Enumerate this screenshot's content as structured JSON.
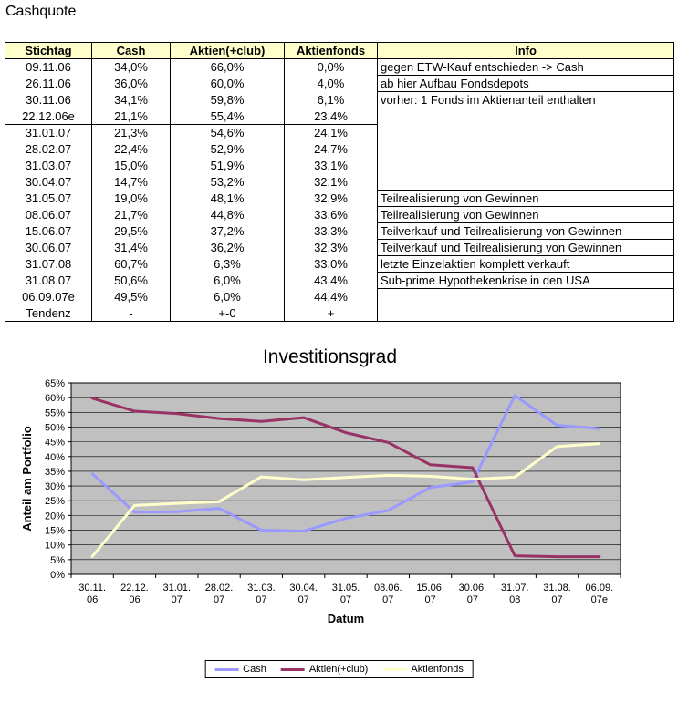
{
  "page": {
    "title": "Cashquote"
  },
  "colors": {
    "header_bg": "#FFFFCC",
    "plot_bg": "#C0C0C0",
    "cash": "#9999FF",
    "aktien": "#993366",
    "aktienfonds": "#FFFFCC"
  },
  "table": {
    "headers": [
      "Stichtag",
      "Cash",
      "Aktien(+club)",
      "Aktienfonds",
      "Info"
    ],
    "rows": [
      {
        "stichtag": "09.11.06",
        "cash": "34,0%",
        "aktien": "66,0%",
        "fonds": "0,0%",
        "info": "gegen ETW-Kauf entschieden -> Cash",
        "separator_after": false
      },
      {
        "stichtag": "26.11.06",
        "cash": "36,0%",
        "aktien": "60,0%",
        "fonds": "4,0%",
        "info": "ab hier Aufbau Fondsdepots",
        "separator_after": false
      },
      {
        "stichtag": "30.11.06",
        "cash": "34,1%",
        "aktien": "59,8%",
        "fonds": "6,1%",
        "info": "vorher: 1 Fonds im Aktienanteil enthalten",
        "separator_after": false
      },
      {
        "stichtag": "22.12.06e",
        "cash": "21,1%",
        "aktien": "55,4%",
        "fonds": "23,4%",
        "info": "",
        "separator_after": true
      },
      {
        "stichtag": "31.01.07",
        "cash": "21,3%",
        "aktien": "54,6%",
        "fonds": "24,1%",
        "info": "",
        "separator_after": false
      },
      {
        "stichtag": "28.02.07",
        "cash": "22,4%",
        "aktien": "52,9%",
        "fonds": "24,7%",
        "info": "",
        "separator_after": false
      },
      {
        "stichtag": "31.03.07",
        "cash": "15,0%",
        "aktien": "51,9%",
        "fonds": "33,1%",
        "info": "",
        "separator_after": false
      },
      {
        "stichtag": "30.04.07",
        "cash": "14,7%",
        "aktien": "53,2%",
        "fonds": "32,1%",
        "info": "",
        "separator_after": false
      },
      {
        "stichtag": "31.05.07",
        "cash": "19,0%",
        "aktien": "48,1%",
        "fonds": "32,9%",
        "info": "Teilrealisierung von Gewinnen",
        "separator_after": false
      },
      {
        "stichtag": "08.06.07",
        "cash": "21,7%",
        "aktien": "44,8%",
        "fonds": "33,6%",
        "info": "Teilrealisierung von Gewinnen",
        "separator_after": false
      },
      {
        "stichtag": "15.06.07",
        "cash": "29,5%",
        "aktien": "37,2%",
        "fonds": "33,3%",
        "info": "Teilverkauf und Teilrealisierung von Gewinnen",
        "separator_after": false
      },
      {
        "stichtag": "30.06.07",
        "cash": "31,4%",
        "aktien": "36,2%",
        "fonds": "32,3%",
        "info": "Teilverkauf und Teilrealisierung von Gewinnen",
        "separator_after": false
      },
      {
        "stichtag": "31.07.08",
        "cash": "60,7%",
        "aktien": "6,3%",
        "fonds": "33,0%",
        "info": "letzte Einzelaktien komplett verkauft",
        "separator_after": false
      },
      {
        "stichtag": "31.08.07",
        "cash": "50,6%",
        "aktien": "6,0%",
        "fonds": "43,4%",
        "info": "Sub-prime Hypothekenkrise in den USA",
        "separator_after": false
      },
      {
        "stichtag": "06.09.07e",
        "cash": "49,5%",
        "aktien": "6,0%",
        "fonds": "44,4%",
        "info": "",
        "separator_after": false
      },
      {
        "stichtag": "Tendenz",
        "cash": "-",
        "aktien": "+-0",
        "fonds": "+",
        "info": "",
        "separator_after": false
      }
    ]
  },
  "chart_data": {
    "type": "line",
    "title": "Investitionsgrad",
    "xlabel": "Datum",
    "ylabel": "Anteil am Portfolio",
    "ylim": [
      0,
      65
    ],
    "ytick_step": 5,
    "grid": true,
    "legend_position": "bottom",
    "plot_bg": "#C0C0C0",
    "categories": [
      [
        "30.11.",
        "06"
      ],
      [
        "22.12.",
        "06"
      ],
      [
        "31.01.",
        "07"
      ],
      [
        "28.02.",
        "07"
      ],
      [
        "31.03.",
        "07"
      ],
      [
        "30.04.",
        "07"
      ],
      [
        "31.05.",
        "07"
      ],
      [
        "08.06.",
        "07"
      ],
      [
        "15.06.",
        "07"
      ],
      [
        "30.06.",
        "07"
      ],
      [
        "31.07.",
        "08"
      ],
      [
        "31.08.",
        "07"
      ],
      [
        "06.09.",
        "07e"
      ]
    ],
    "series": [
      {
        "name": "Cash",
        "color": "#9999FF",
        "values": [
          34.1,
          21.1,
          21.3,
          22.4,
          15.0,
          14.7,
          19.0,
          21.7,
          29.5,
          31.4,
          60.7,
          50.6,
          49.5
        ]
      },
      {
        "name": "Aktien(+club)",
        "color": "#993366",
        "values": [
          59.8,
          55.4,
          54.6,
          52.9,
          51.9,
          53.2,
          48.1,
          44.8,
          37.2,
          36.2,
          6.3,
          6.0,
          6.0
        ]
      },
      {
        "name": "Aktienfonds",
        "color": "#FFFFCC",
        "values": [
          6.1,
          23.4,
          24.1,
          24.7,
          33.1,
          32.1,
          32.9,
          33.6,
          33.3,
          32.3,
          33.0,
          43.4,
          44.4
        ]
      }
    ]
  }
}
